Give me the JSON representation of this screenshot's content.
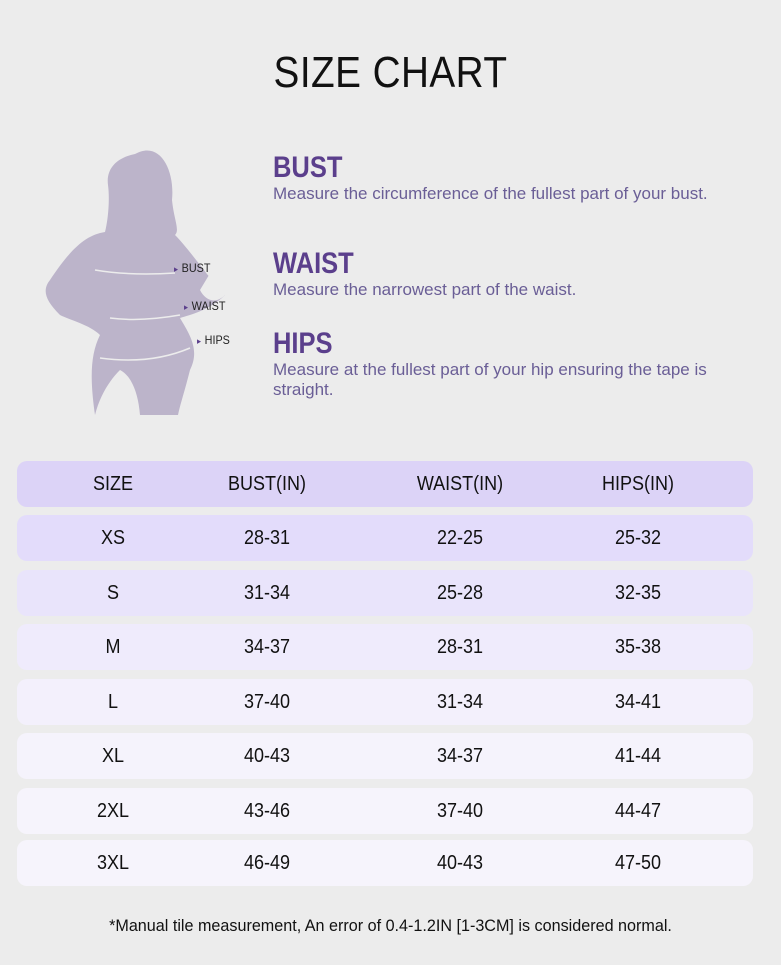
{
  "title": "SIZE CHART",
  "figure": {
    "labels": [
      "BUST",
      "WAIST",
      "HIPS"
    ]
  },
  "sections": [
    {
      "heading": "BUST",
      "text": "Measure the circumference of the fullest part of your bust."
    },
    {
      "heading": "WAIST",
      "text": "Measure the narrowest part of the waist."
    },
    {
      "heading": "HIPS",
      "text": "Measure at the fullest part of your hip ensuring the tape is straight."
    }
  ],
  "table": {
    "headers": [
      "SIZE",
      "BUST(IN)",
      "WAIST(IN)",
      "HIPS(IN)"
    ],
    "rows": [
      [
        "XS",
        "28-31",
        "22-25",
        "25-32"
      ],
      [
        "S",
        "31-34",
        "25-28",
        "32-35"
      ],
      [
        "M",
        "34-37",
        "28-31",
        "35-38"
      ],
      [
        "L",
        "37-40",
        "31-34",
        "34-41"
      ],
      [
        "XL",
        "40-43",
        "34-37",
        "41-44"
      ],
      [
        "2XL",
        "43-46",
        "37-40",
        "44-47"
      ],
      [
        "3XL",
        "46-49",
        "40-43",
        "47-50"
      ]
    ]
  },
  "note": "*Manual tile measurement, An error of 0.4-1.2IN [1-3CM] is considered normal.",
  "colors": {
    "accent": "#5b3f8c",
    "header_row": "#dcd3f7",
    "silhouette": "#bcb4ca"
  }
}
